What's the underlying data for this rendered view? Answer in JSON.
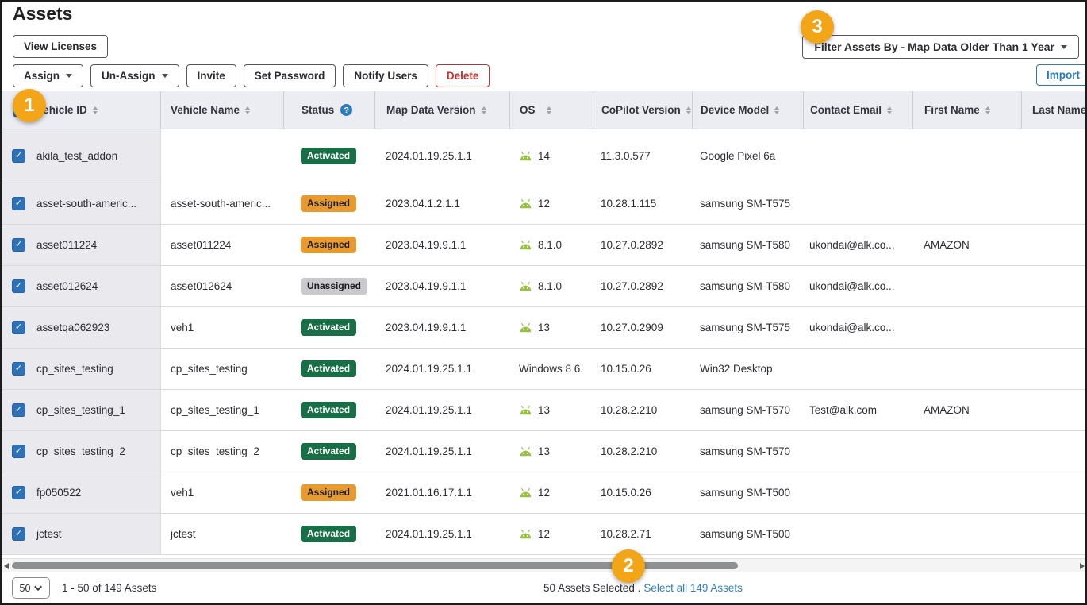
{
  "header": {
    "title": "Assets",
    "view_licenses_label": "View Licenses",
    "actions": {
      "assign": "Assign",
      "unassign": "Un-Assign",
      "invite": "Invite",
      "set_password": "Set Password",
      "notify_users": "Notify Users",
      "delete": "Delete"
    },
    "filter_label": "Filter Assets By - Map Data Older Than 1 Year",
    "import_label": "Import"
  },
  "table": {
    "columns": [
      {
        "label": "Vehicle ID",
        "sort": true
      },
      {
        "label": "Vehicle Name",
        "sort": true
      },
      {
        "label": "Status",
        "sort": false,
        "help": true
      },
      {
        "label": "Map Data Version",
        "sort": true
      },
      {
        "label": "OS",
        "sort": true
      },
      {
        "label": "CoPilot Version",
        "sort": true
      },
      {
        "label": "Device Model",
        "sort": true
      },
      {
        "label": "Contact Email",
        "sort": true
      },
      {
        "label": "First Name",
        "sort": true
      },
      {
        "label": "Last Name",
        "sort": false
      }
    ],
    "rows": [
      {
        "checked": true,
        "vehicle_id": "akila_test_addon",
        "vehicle_name": "",
        "status": "Activated",
        "map_data_version": "2024.01.19.25.1.1",
        "os": "14",
        "os_icon": "android",
        "copilot_version": "11.3.0.577",
        "device_model": "Google Pixel 6a",
        "contact_email": "",
        "first_name": "",
        "last_name": ""
      },
      {
        "checked": true,
        "vehicle_id": "asset-south-americ...",
        "vehicle_name": "asset-south-americ...",
        "status": "Assigned",
        "map_data_version": "2023.04.1.2.1.1",
        "os": "12",
        "os_icon": "android",
        "copilot_version": "10.28.1.115",
        "device_model": "samsung SM-T575",
        "contact_email": "",
        "first_name": "",
        "last_name": ""
      },
      {
        "checked": true,
        "vehicle_id": "asset011224",
        "vehicle_name": "asset011224",
        "status": "Assigned",
        "map_data_version": "2023.04.19.9.1.1",
        "os": "8.1.0",
        "os_icon": "android",
        "copilot_version": "10.27.0.2892",
        "device_model": "samsung SM-T580",
        "contact_email": "ukondai@alk.co...",
        "first_name": "AMAZON",
        "last_name": ""
      },
      {
        "checked": true,
        "vehicle_id": "asset012624",
        "vehicle_name": "asset012624",
        "status": "Unassigned",
        "map_data_version": "2023.04.19.9.1.1",
        "os": "8.1.0",
        "os_icon": "android",
        "copilot_version": "10.27.0.2892",
        "device_model": "samsung SM-T580",
        "contact_email": "ukondai@alk.co...",
        "first_name": "",
        "last_name": ""
      },
      {
        "checked": true,
        "vehicle_id": "assetqa062923",
        "vehicle_name": "veh1",
        "status": "Activated",
        "map_data_version": "2023.04.19.9.1.1",
        "os": "13",
        "os_icon": "android",
        "copilot_version": "10.27.0.2909",
        "device_model": "samsung SM-T575",
        "contact_email": "ukondai@alk.co...",
        "first_name": "",
        "last_name": ""
      },
      {
        "checked": true,
        "vehicle_id": "cp_sites_testing",
        "vehicle_name": "cp_sites_testing",
        "status": "Activated",
        "map_data_version": "2024.01.19.25.1.1",
        "os": "Windows 8 6.",
        "os_icon": "none",
        "copilot_version": "10.15.0.26",
        "device_model": "Win32 Desktop",
        "contact_email": "",
        "first_name": "",
        "last_name": ""
      },
      {
        "checked": true,
        "vehicle_id": "cp_sites_testing_1",
        "vehicle_name": "cp_sites_testing_1",
        "status": "Activated",
        "map_data_version": "2024.01.19.25.1.1",
        "os": "13",
        "os_icon": "android",
        "copilot_version": "10.28.2.210",
        "device_model": "samsung SM-T570",
        "contact_email": "Test@alk.com",
        "first_name": "AMAZON",
        "last_name": ""
      },
      {
        "checked": true,
        "vehicle_id": "cp_sites_testing_2",
        "vehicle_name": "cp_sites_testing_2",
        "status": "Activated",
        "map_data_version": "2024.01.19.25.1.1",
        "os": "13",
        "os_icon": "android",
        "copilot_version": "10.28.2.210",
        "device_model": "samsung SM-T570",
        "contact_email": "",
        "first_name": "",
        "last_name": ""
      },
      {
        "checked": true,
        "vehicle_id": "fp050522",
        "vehicle_name": "veh1",
        "status": "Assigned",
        "map_data_version": "2021.01.16.17.1.1",
        "os": "12",
        "os_icon": "android",
        "copilot_version": "10.15.0.26",
        "device_model": "samsung SM-T500",
        "contact_email": "",
        "first_name": "",
        "last_name": ""
      },
      {
        "checked": true,
        "vehicle_id": "jctest",
        "vehicle_name": "jctest",
        "status": "Activated",
        "map_data_version": "2024.01.19.25.1.1",
        "os": "12",
        "os_icon": "android",
        "copilot_version": "10.28.2.71",
        "device_model": "samsung SM-T500",
        "contact_email": "",
        "first_name": "",
        "last_name": ""
      }
    ]
  },
  "footer": {
    "page_size": "50",
    "range_text": "1 - 50 of 149 Assets",
    "selected_text": "50 Assets Selected .",
    "select_all_link": "Select all 149 Assets"
  },
  "callouts": {
    "badge1": "1",
    "badge2": "2",
    "badge3": "3"
  },
  "colors": {
    "status_activated": "#186f46",
    "status_assigned": "#e89a2e",
    "status_unassigned": "#c9c9ce",
    "android_green": "#97c13d",
    "checkbox_blue": "#2d72b9",
    "link_blue": "#2e7fc1",
    "delete_red": "#c9302c",
    "import_blue": "#2779bd",
    "callout_yellow": "#f2a516"
  }
}
